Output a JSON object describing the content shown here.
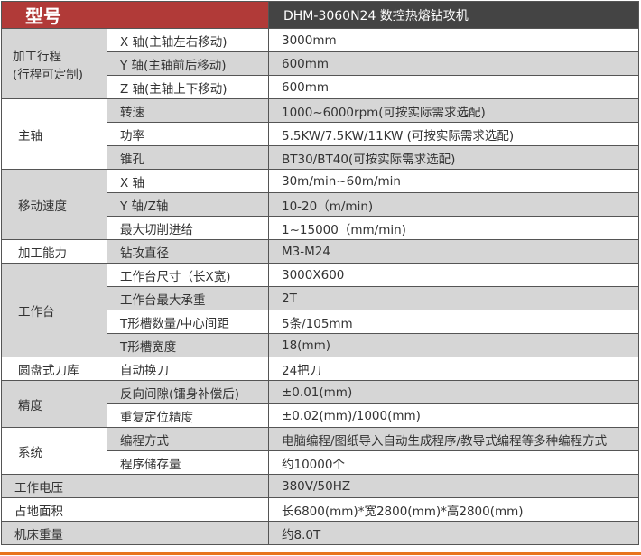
{
  "header": {
    "label": "型号",
    "value": "DHM-3060N24 数控热熔钻攻机"
  },
  "groups": [
    {
      "name": "加工行程\n(行程可定制)",
      "line1": "加工行程",
      "line2": "(行程可定制)",
      "rows": [
        {
          "item": "X 轴(主轴左右移动)",
          "value": "3000mm"
        },
        {
          "item": "Y 轴(主轴前后移动)",
          "value": "600mm"
        },
        {
          "item": "Z 轴(主轴上下移动)",
          "value": "600mm"
        }
      ]
    },
    {
      "name": "主轴",
      "rows": [
        {
          "item": "转速",
          "value": "1000~6000rpm(可按实际需求选配)"
        },
        {
          "item": "功率",
          "value": "5.5KW/7.5KW/11KW (可按实际需求选配)"
        },
        {
          "item": "锥孔",
          "value": "BT30/BT40(可按实际需求选配)"
        }
      ]
    },
    {
      "name": "移动速度",
      "rows": [
        {
          "item": "X 轴",
          "value": "30m/min~60m/min"
        },
        {
          "item": "Y 轴/Z轴",
          "value": "10-20（m/min)"
        },
        {
          "item": "最大切削进给",
          "value": "1~15000（mm/min)"
        }
      ]
    },
    {
      "name": "加工能力",
      "rows": [
        {
          "item": "钻攻直径",
          "value": "M3-M24"
        }
      ]
    },
    {
      "name": "工作台",
      "rows": [
        {
          "item": "工作台尺寸（长X宽)",
          "value": "3000X600"
        },
        {
          "item": "工作台最大承重",
          "value": "2T"
        },
        {
          "item": "T形槽数量/中心间距",
          "value": "5条/105mm"
        },
        {
          "item": "T形槽宽度",
          "value": "18(mm)"
        }
      ]
    },
    {
      "name": "圆盘式刀库",
      "rows": [
        {
          "item": "自动换刀",
          "value": "24把刀"
        }
      ]
    },
    {
      "name": "精度",
      "rows": [
        {
          "item": "反向间隙(镭身补偿后)",
          "value": "±0.01(mm)"
        },
        {
          "item": "重复定位精度",
          "value": "±0.02(mm)/1000(mm)"
        }
      ]
    },
    {
      "name": "系统",
      "rows": [
        {
          "item": "编程方式",
          "value": "电脑编程/图纸导入自动生成程序/教导式编程等多种编程方式"
        },
        {
          "item": "程序储存量",
          "value": "约10000个"
        }
      ]
    }
  ],
  "singles": [
    {
      "name": "工作电压",
      "value": "380V/50HZ"
    },
    {
      "name": "占地面积",
      "value": "长6800(mm)*宽2800(mm)*高2800(mm)"
    },
    {
      "name": "机床重量",
      "value": "约8.0T"
    }
  ],
  "colors": {
    "header_red": "#b13a38",
    "header_dark": "#444444",
    "row_gray": "#d6d6d6",
    "bottom_line": "#e8751f"
  }
}
